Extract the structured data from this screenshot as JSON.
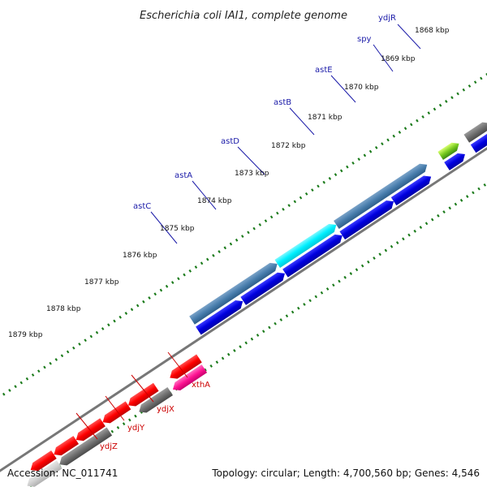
{
  "title": "Escherichia coli IAI1, complete genome",
  "footer": {
    "accession": "Accession: NC_011741",
    "summary": "Topology: circular; Length: 4,700,560 bp; Genes: 4,546"
  },
  "colors": {
    "forward_label": "#1a1aa8",
    "reverse_label": "#cc0000",
    "backbone": "#777777",
    "tick": "#1a7a1a"
  },
  "kbp_labels": [
    "1868 kbp",
    "1869 kbp",
    "1870 kbp",
    "1871 kbp",
    "1872 kbp",
    "1873 kbp",
    "1874 kbp",
    "1875 kbp",
    "1876 kbp",
    "1877 kbp",
    "1878 kbp",
    "1879 kbp"
  ],
  "genes_forward": [
    "ydjR",
    "spy",
    "astE",
    "astB",
    "astD",
    "astA",
    "astC"
  ],
  "genes_reverse": [
    "xthA",
    "ydjX",
    "ydjY",
    "ydjZ"
  ]
}
